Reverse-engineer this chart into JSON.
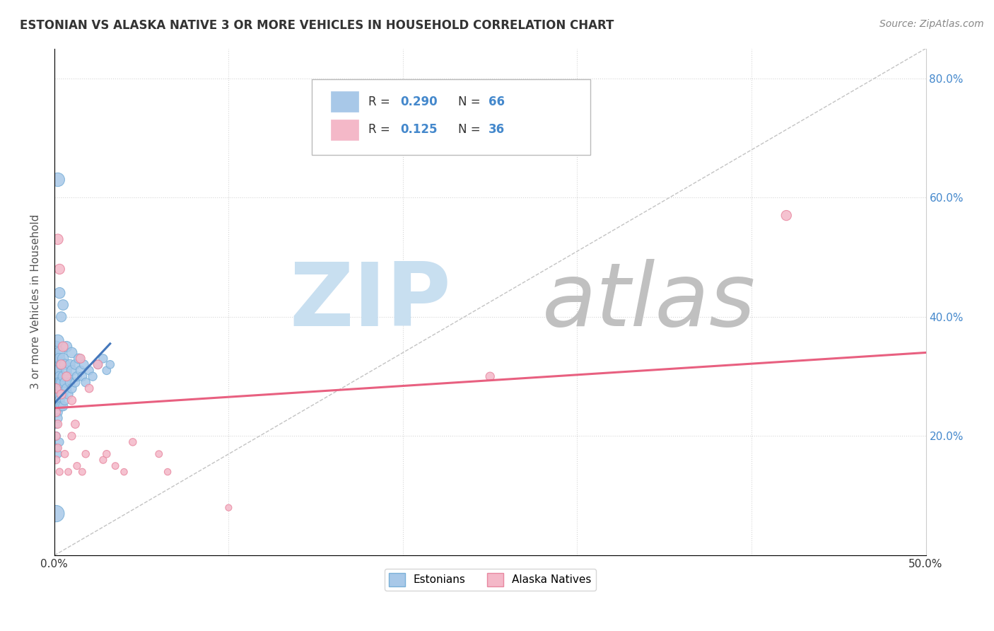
{
  "title": "ESTONIAN VS ALASKA NATIVE 3 OR MORE VEHICLES IN HOUSEHOLD CORRELATION CHART",
  "source": "Source: ZipAtlas.com",
  "ylabel": "3 or more Vehicles in Household",
  "xlim": [
    0.0,
    0.5
  ],
  "ylim": [
    0.0,
    0.85
  ],
  "legend_label1": "Estonians",
  "legend_label2": "Alaska Natives",
  "color1": "#a8c8e8",
  "color2": "#f4b8c8",
  "color1_edge": "#7ab0d8",
  "color2_edge": "#e888a0",
  "trendline_color1": "#4477bb",
  "trendline_color2": "#e86080",
  "watermark_zip": "ZIP",
  "watermark_atlas": "atlas",
  "watermark_color_zip": "#c8dff0",
  "watermark_color_atlas": "#c0c0c0",
  "background_color": "#ffffff",
  "grid_color": "#cccccc",
  "refline_color": "#aaaaaa",
  "estonians_x": [
    0.001,
    0.001,
    0.001,
    0.001,
    0.001,
    0.001,
    0.001,
    0.001,
    0.002,
    0.002,
    0.002,
    0.002,
    0.002,
    0.002,
    0.002,
    0.003,
    0.003,
    0.003,
    0.003,
    0.003,
    0.003,
    0.004,
    0.004,
    0.004,
    0.004,
    0.005,
    0.005,
    0.005,
    0.005,
    0.006,
    0.006,
    0.006,
    0.007,
    0.007,
    0.007,
    0.008,
    0.008,
    0.009,
    0.009,
    0.01,
    0.01,
    0.01,
    0.012,
    0.012,
    0.013,
    0.014,
    0.015,
    0.016,
    0.017,
    0.018,
    0.02,
    0.022,
    0.025,
    0.028,
    0.03,
    0.032,
    0.002,
    0.003,
    0.004,
    0.005,
    0.001,
    0.001,
    0.002,
    0.003,
    0.001
  ],
  "estonians_y": [
    0.27,
    0.3,
    0.25,
    0.29,
    0.33,
    0.26,
    0.22,
    0.35,
    0.28,
    0.32,
    0.24,
    0.36,
    0.27,
    0.31,
    0.23,
    0.3,
    0.34,
    0.26,
    0.29,
    0.25,
    0.33,
    0.28,
    0.32,
    0.25,
    0.29,
    0.3,
    0.27,
    0.33,
    0.25,
    0.29,
    0.32,
    0.26,
    0.31,
    0.28,
    0.35,
    0.3,
    0.27,
    0.32,
    0.29,
    0.31,
    0.28,
    0.34,
    0.32,
    0.29,
    0.3,
    0.33,
    0.31,
    0.3,
    0.32,
    0.29,
    0.31,
    0.3,
    0.32,
    0.33,
    0.31,
    0.32,
    0.63,
    0.44,
    0.4,
    0.42,
    0.2,
    0.18,
    0.17,
    0.19,
    0.07
  ],
  "estonians_size": [
    30,
    35,
    25,
    30,
    40,
    28,
    22,
    38,
    32,
    38,
    25,
    42,
    30,
    35,
    24,
    30,
    38,
    28,
    32,
    26,
    35,
    28,
    34,
    26,
    30,
    30,
    27,
    35,
    25,
    28,
    32,
    25,
    30,
    27,
    34,
    28,
    25,
    30,
    27,
    30,
    26,
    32,
    28,
    25,
    26,
    28,
    25,
    24,
    24,
    23,
    22,
    22,
    22,
    22,
    20,
    20,
    55,
    35,
    30,
    32,
    22,
    20,
    18,
    20,
    80
  ],
  "alaska_x": [
    0.001,
    0.001,
    0.001,
    0.001,
    0.002,
    0.002,
    0.002,
    0.003,
    0.003,
    0.004,
    0.004,
    0.005,
    0.006,
    0.007,
    0.008,
    0.01,
    0.01,
    0.012,
    0.013,
    0.015,
    0.016,
    0.018,
    0.02,
    0.025,
    0.028,
    0.03,
    0.035,
    0.04,
    0.045,
    0.06,
    0.065,
    0.1,
    0.25,
    0.42
  ],
  "alaska_y": [
    0.28,
    0.24,
    0.2,
    0.16,
    0.53,
    0.22,
    0.18,
    0.48,
    0.14,
    0.27,
    0.32,
    0.35,
    0.17,
    0.3,
    0.14,
    0.26,
    0.2,
    0.22,
    0.15,
    0.33,
    0.14,
    0.17,
    0.28,
    0.32,
    0.16,
    0.17,
    0.15,
    0.14,
    0.19,
    0.17,
    0.14,
    0.08,
    0.3,
    0.57
  ],
  "alaska_size": [
    25,
    22,
    20,
    18,
    32,
    20,
    18,
    30,
    15,
    24,
    26,
    28,
    16,
    24,
    14,
    22,
    18,
    20,
    15,
    24,
    14,
    16,
    20,
    24,
    15,
    16,
    14,
    13,
    16,
    14,
    13,
    12,
    22,
    30
  ],
  "trend1_x0": 0.0,
  "trend1_y0": 0.255,
  "trend1_x1": 0.032,
  "trend1_y1": 0.355,
  "trend2_x0": 0.0,
  "trend2_y0": 0.247,
  "trend2_x1": 0.5,
  "trend2_y1": 0.34
}
